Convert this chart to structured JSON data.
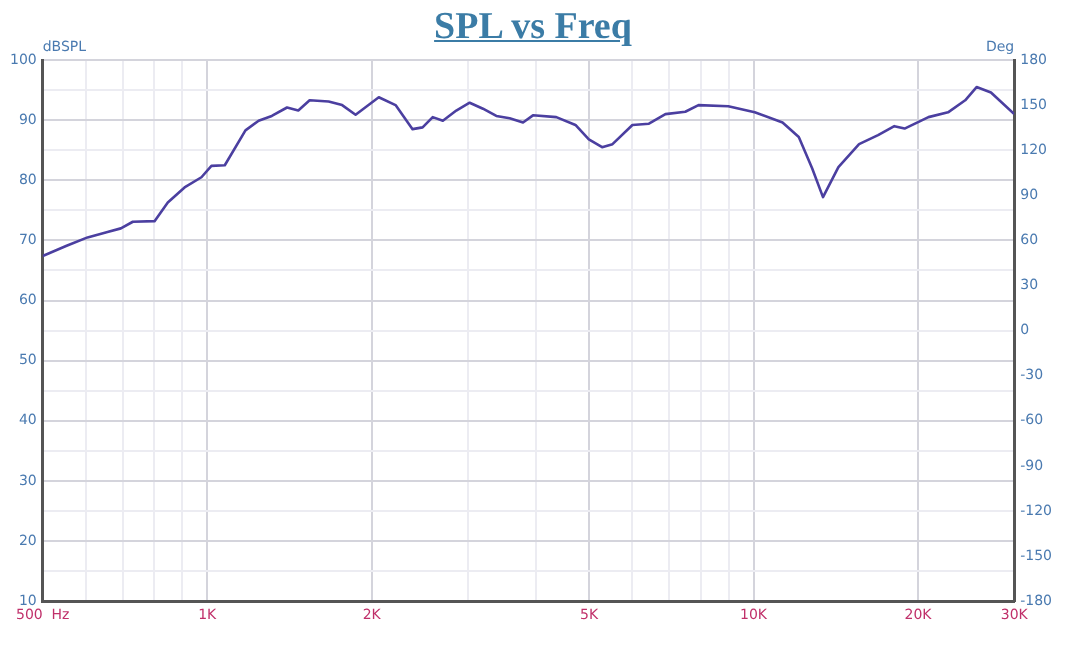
{
  "chart_data": {
    "type": "line",
    "title": "SPL vs Freq",
    "ylabel": "dBSPL",
    "y2label": "Deg",
    "x": [
      500,
      553,
      604,
      657,
      695,
      731,
      801,
      847,
      909,
      976,
      1018,
      1077,
      1175,
      1242,
      1313,
      1400,
      1468,
      1540,
      1668,
      1766,
      1869,
      2061,
      2212,
      2376,
      2479,
      2587,
      2700,
      2857,
      3023,
      3197,
      3382,
      3578,
      3785,
      3947,
      4355,
      4721,
      4995,
      5282,
      5519,
      6002,
      6435,
      6898,
      7500,
      7930,
      8990,
      10050,
      11300,
      12100,
      12800,
      13400,
      14300,
      15600,
      16900,
      18100,
      18900,
      20900,
      22700,
      24400,
      25600,
      27200,
      30000
    ],
    "series": [
      {
        "color": "#4b3fa0",
        "values": [
          67.4,
          69.1,
          70.5,
          71.4,
          72.0,
          73.1,
          73.2,
          76.3,
          78.8,
          80.5,
          82.4,
          82.5,
          88.3,
          89.9,
          90.7,
          92.1,
          91.6,
          93.3,
          93.1,
          92.5,
          90.9,
          93.8,
          92.5,
          88.5,
          88.8,
          90.5,
          89.9,
          91.6,
          92.9,
          91.9,
          90.7,
          90.3,
          89.6,
          90.8,
          90.5,
          89.2,
          86.8,
          85.5,
          86.0,
          89.2,
          89.4,
          91.0,
          91.4,
          92.5,
          92.3,
          91.3,
          89.6,
          87.2,
          82.0,
          77.2,
          82.2,
          86.0,
          87.5,
          89.0,
          88.6,
          90.5,
          91.3,
          93.3,
          95.5,
          94.6,
          91.0
        ]
      }
    ],
    "log": "x",
    "xlim": [
      500,
      30000
    ],
    "xticks": [
      {
        "value": 500,
        "label": "500  Hz"
      },
      {
        "value": 600,
        "label": null
      },
      {
        "value": 700,
        "label": null
      },
      {
        "value": 800,
        "label": null
      },
      {
        "value": 900,
        "label": null
      },
      {
        "value": 1000,
        "label": "1K"
      },
      {
        "value": 2000,
        "label": "2K"
      },
      {
        "value": 3000,
        "label": null
      },
      {
        "value": 4000,
        "label": null
      },
      {
        "value": 5000,
        "label": "5K"
      },
      {
        "value": 6000,
        "label": null
      },
      {
        "value": 7000,
        "label": null
      },
      {
        "value": 8000,
        "label": null
      },
      {
        "value": 9000,
        "label": null
      },
      {
        "value": 10000,
        "label": "10K"
      },
      {
        "value": 20000,
        "label": "20K"
      },
      {
        "value": 30000,
        "label": "30K"
      }
    ],
    "ylim": [
      10,
      100
    ],
    "yticks": [
      10,
      {
        "value": 15,
        "label": null
      },
      20,
      {
        "value": 25,
        "label": null
      },
      30,
      {
        "value": 35,
        "label": null
      },
      40,
      {
        "value": 45,
        "label": null
      },
      50,
      {
        "value": 55,
        "label": null
      },
      60,
      {
        "value": 65,
        "label": null
      },
      70,
      {
        "value": 75,
        "label": null
      },
      80,
      {
        "value": 85,
        "label": null
      },
      90,
      {
        "value": 95,
        "label": null
      },
      100
    ],
    "y2lim": [
      -180,
      180
    ],
    "y2ticks": [
      -180,
      -150,
      -120,
      -90,
      -60,
      -30,
      0,
      30,
      60,
      90,
      120,
      150,
      180
    ],
    "grid": true,
    "legend": false,
    "marker": "none",
    "line_style": "solid"
  }
}
